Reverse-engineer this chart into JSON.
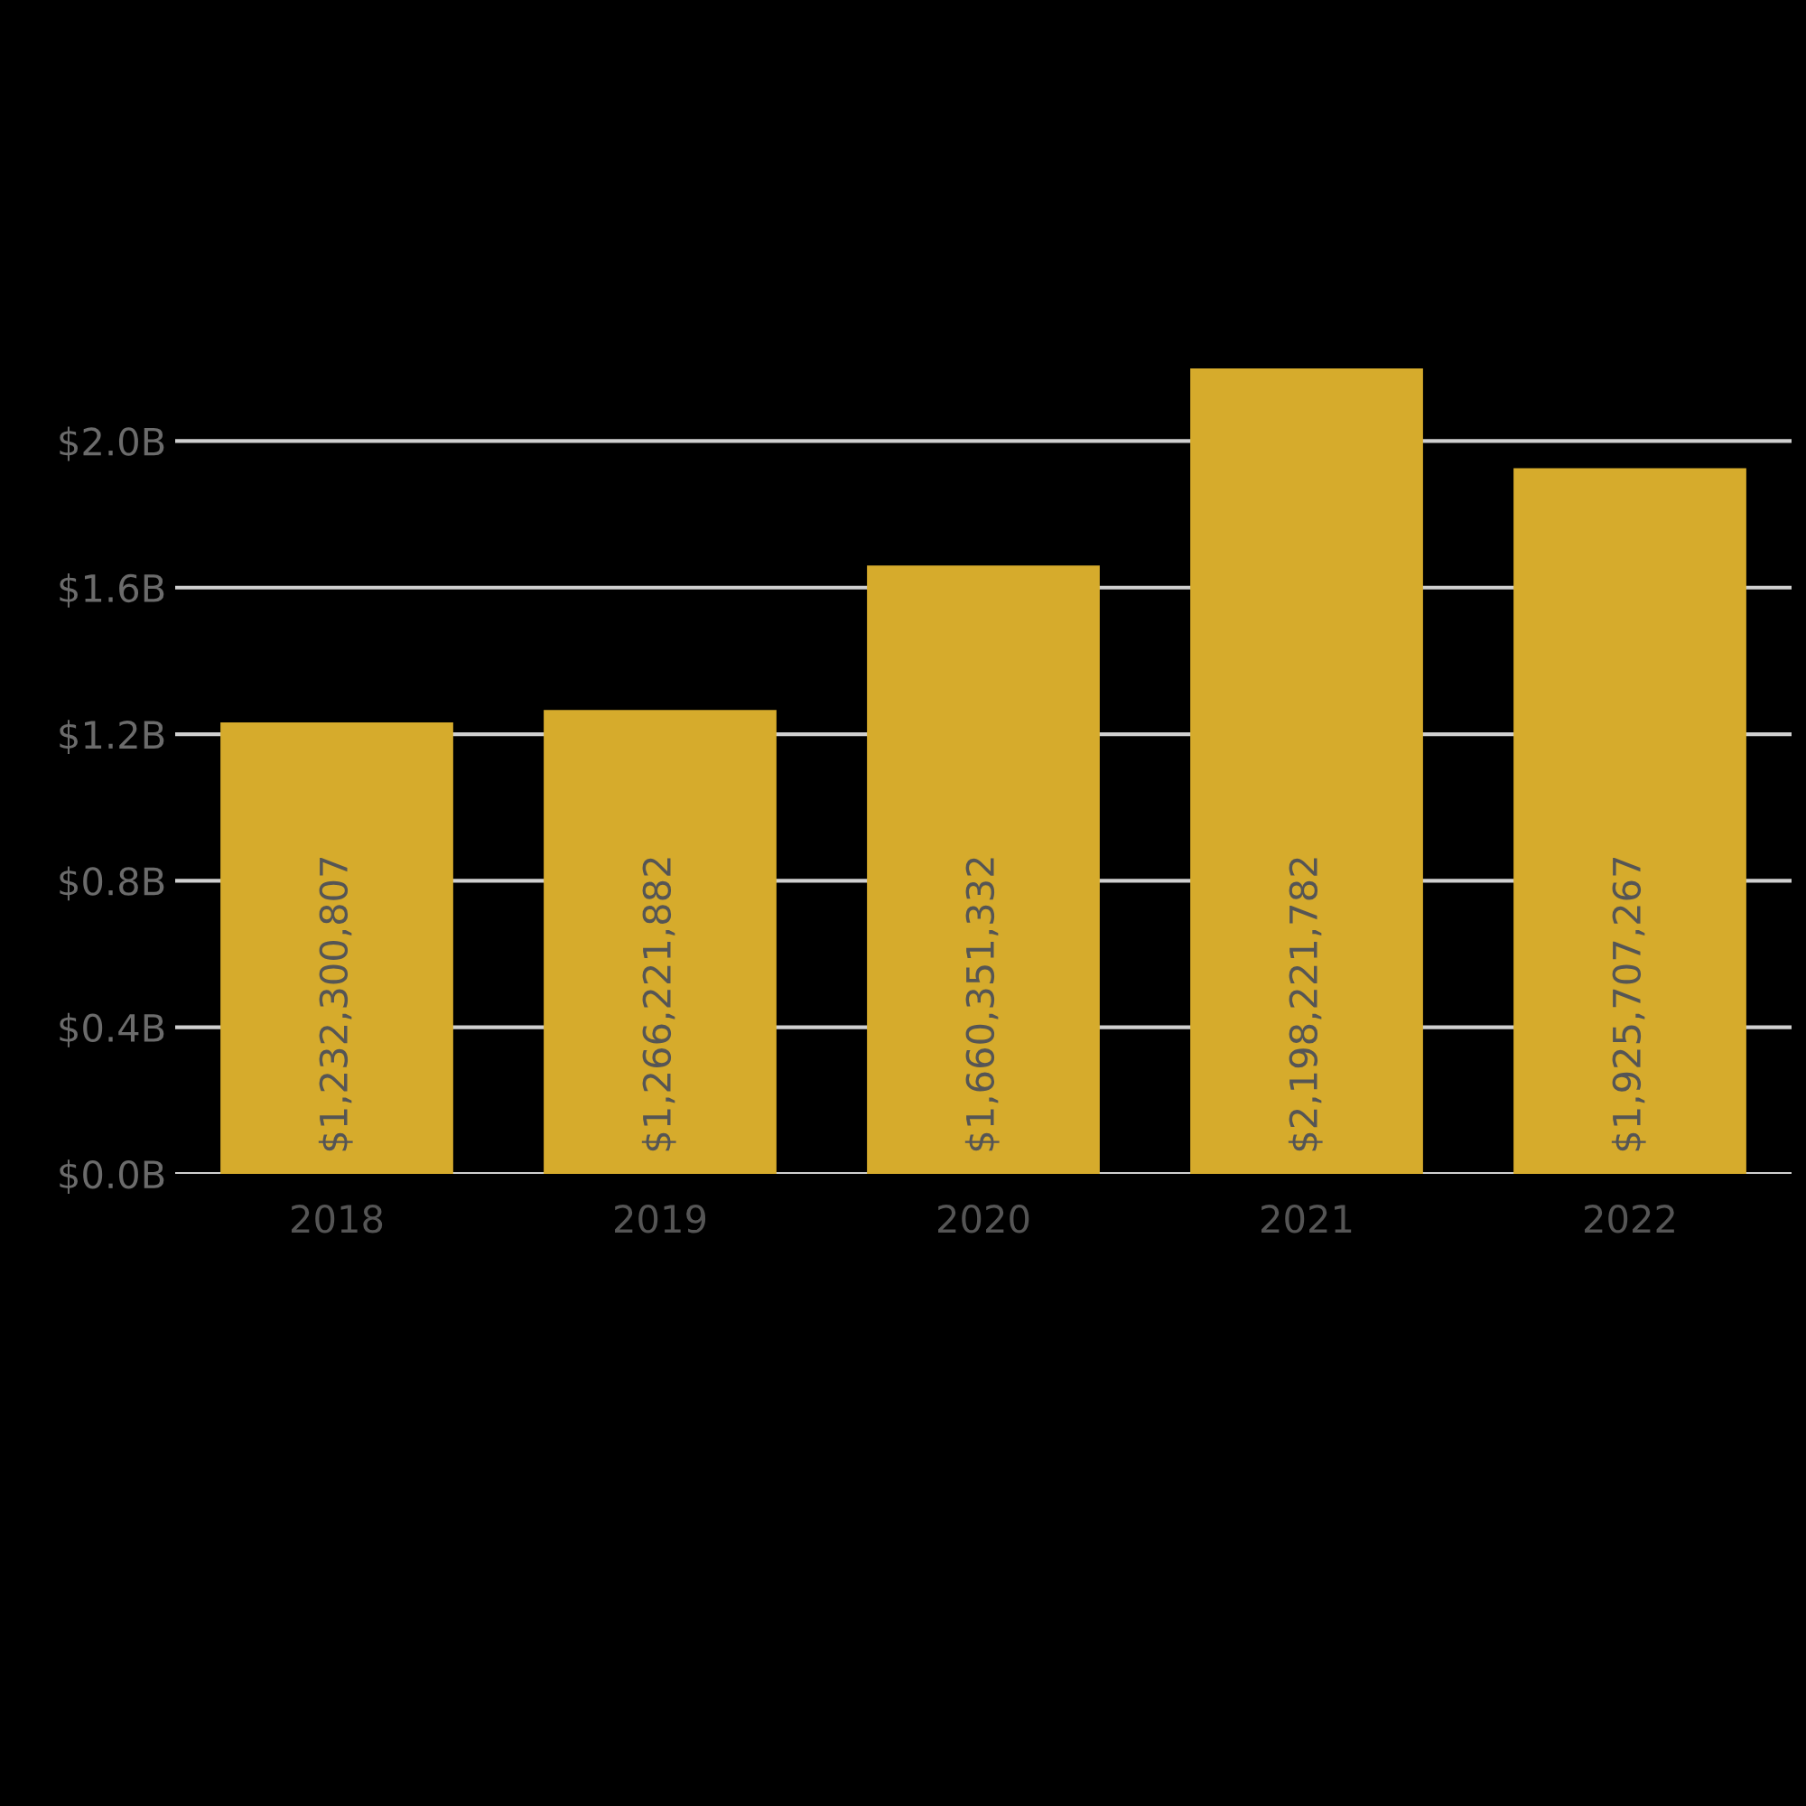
{
  "chart_data": {
    "type": "bar",
    "categories": [
      "2018",
      "2019",
      "2020",
      "2021",
      "2022"
    ],
    "values": [
      1232300807,
      1266221882,
      1660351332,
      2198221782,
      1925707267
    ],
    "value_labels": [
      "$1,232,300,807",
      "$1,266,221,882",
      "$1,660,351,332",
      "$2,198,221,782",
      "$1,925,707,267"
    ],
    "color": "#d6ab2c",
    "ylim": [
      0,
      2198221782
    ],
    "yticks": [
      {
        "value": 0,
        "label": "$0.0B"
      },
      {
        "value": 400000000,
        "label": "$0.4B"
      },
      {
        "value": 800000000,
        "label": "$0.8B"
      },
      {
        "value": 1200000000,
        "label": "$1.2B"
      },
      {
        "value": 1600000000,
        "label": "$1.6B"
      },
      {
        "value": 2000000000,
        "label": "$2.0B"
      }
    ],
    "grid": "y",
    "legend": false
  }
}
